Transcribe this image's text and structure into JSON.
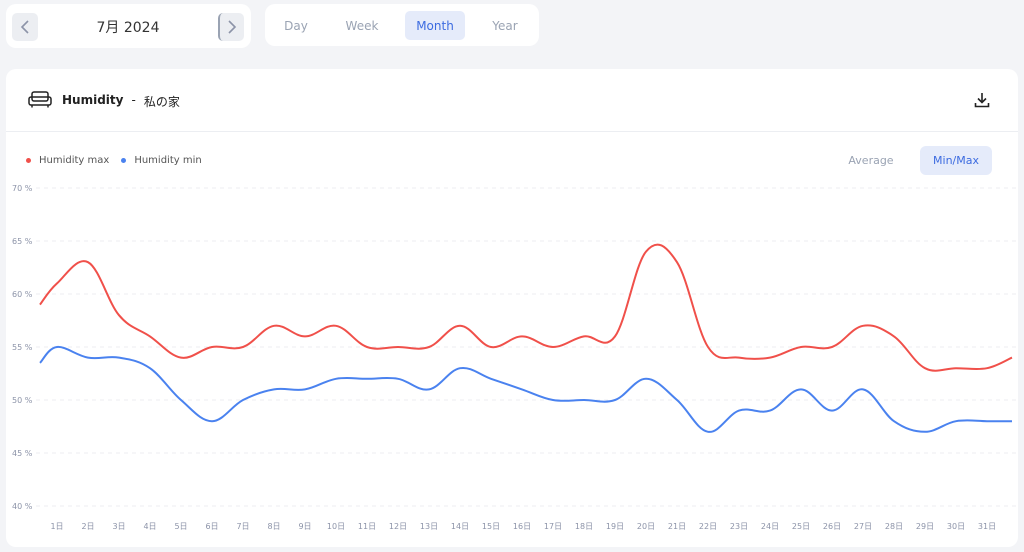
{
  "date_nav": {
    "label": "7月 2024",
    "prev_icon": "chevron-left-icon",
    "next_icon": "chevron-right-icon"
  },
  "period_tabs": [
    {
      "label": "Day",
      "active": false
    },
    {
      "label": "Week",
      "active": false
    },
    {
      "label": "Month",
      "active": true
    },
    {
      "label": "Year",
      "active": false
    }
  ],
  "header": {
    "icon": "sofa-icon",
    "title": "Humidity",
    "separator": "-",
    "location": "私の家",
    "download_icon": "download-icon"
  },
  "modes": [
    {
      "label": "Average",
      "active": false
    },
    {
      "label": "Min/Max",
      "active": true
    }
  ],
  "colors": {
    "max": "#f0504a",
    "min": "#4a82ef",
    "accent": "#3c6be0",
    "active_bg": "#e5ebfa"
  },
  "chart_data": {
    "type": "line",
    "categories": [
      "1日",
      "2日",
      "3日",
      "4日",
      "5日",
      "6日",
      "7日",
      "8日",
      "9日",
      "10日",
      "11日",
      "12日",
      "13日",
      "14日",
      "15日",
      "16日",
      "17日",
      "18日",
      "19日",
      "20日",
      "21日",
      "22日",
      "23日",
      "24日",
      "25日",
      "26日",
      "27日",
      "28日",
      "29日",
      "30日",
      "31日"
    ],
    "series": [
      {
        "name": "Humidity max",
        "color": "#f0504a",
        "values": [
          61,
          63,
          58,
          56,
          54,
          55,
          55,
          57,
          56,
          57,
          55,
          55,
          55,
          57,
          55,
          56,
          55,
          56,
          56,
          64,
          63,
          55,
          54,
          54,
          55,
          55,
          57,
          56,
          53,
          53,
          53
        ],
        "start_value": 59,
        "end_value": 54
      },
      {
        "name": "Humidity min",
        "color": "#4a82ef",
        "values": [
          55,
          54,
          54,
          53,
          50,
          48,
          50,
          51,
          51,
          52,
          52,
          52,
          51,
          53,
          52,
          51,
          50,
          50,
          50,
          52,
          50,
          47,
          49,
          49,
          51,
          49,
          51,
          48,
          47,
          48,
          48
        ],
        "start_value": 53.5,
        "end_value": 48
      }
    ],
    "ylim": [
      40,
      70
    ],
    "yticks": [
      "70 %",
      "65 %",
      "60 %",
      "55 %",
      "50 %",
      "45 %",
      "40 %"
    ],
    "ytick_values": [
      70,
      65,
      60,
      55,
      50,
      45,
      40
    ],
    "grid": true,
    "legend": "top-left"
  }
}
